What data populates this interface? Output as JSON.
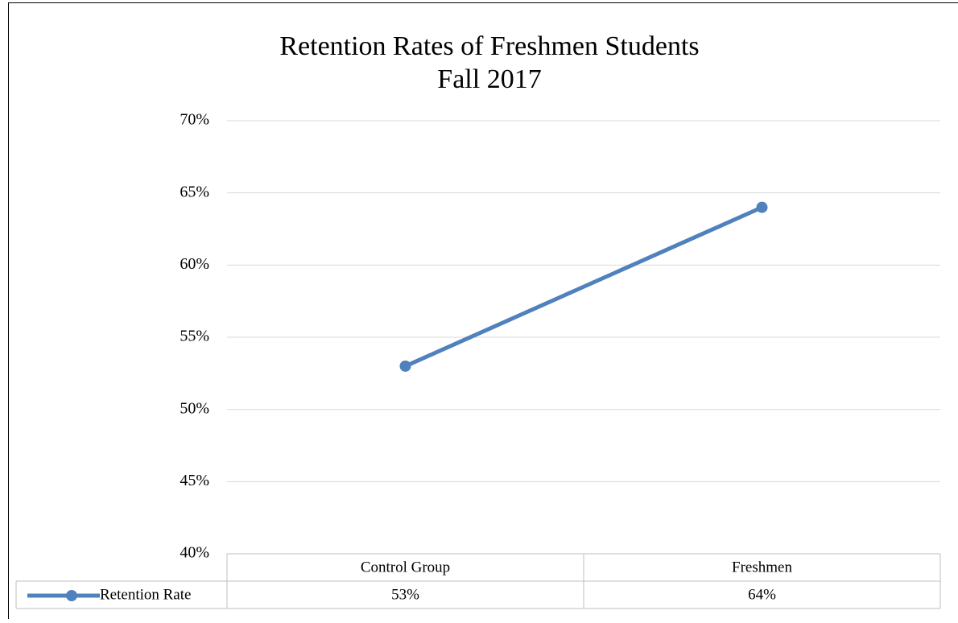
{
  "chart_data": {
    "type": "line",
    "title": "Retention Rates of Freshmen Students",
    "subtitle": "Fall 2017",
    "categories": [
      "Control Group",
      "Freshmen"
    ],
    "series": [
      {
        "name": "Retention Rate",
        "color": "#4f81bd",
        "values": [
          53,
          64
        ],
        "value_labels": [
          "53%",
          "64%"
        ]
      }
    ],
    "ylim": [
      40,
      70
    ],
    "yticks": [
      {
        "value": 40,
        "label": "40%"
      },
      {
        "value": 45,
        "label": "45%"
      },
      {
        "value": 50,
        "label": "50%"
      },
      {
        "value": 55,
        "label": "55%"
      },
      {
        "value": 60,
        "label": "60%"
      },
      {
        "value": 65,
        "label": "65%"
      },
      {
        "value": 70,
        "label": "70%"
      }
    ],
    "grid": true,
    "data_table": true
  }
}
